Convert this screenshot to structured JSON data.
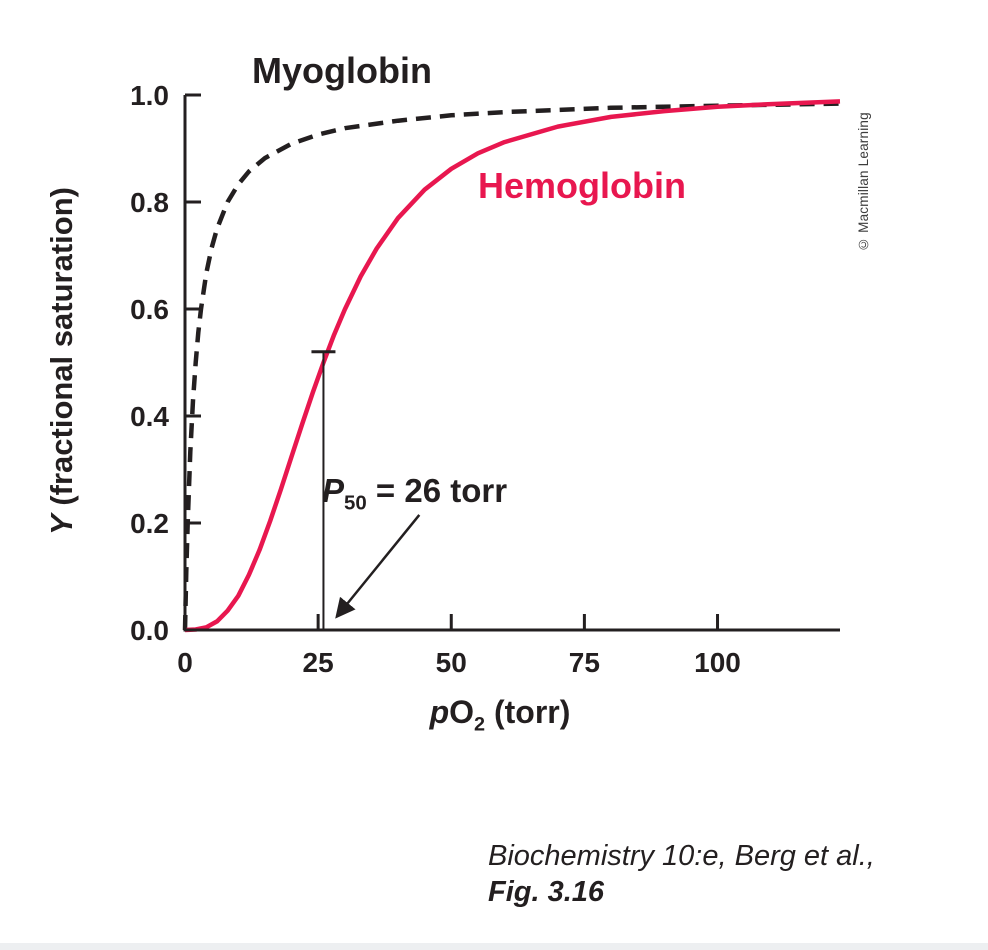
{
  "colors": {
    "axis": "#231f20",
    "text": "#231f20",
    "myoglobin": "#231f20",
    "hemoglobin": "#e8174f"
  },
  "labels": {
    "myoglobin": "Myoglobin",
    "hemoglobin": "Hemoglobin",
    "y_axis": {
      "italic": "Y",
      "rest": " (fractional saturation)"
    },
    "x_axis": {
      "italic": "p",
      "main": "O",
      "sub": "2",
      "rest": " (torr)"
    },
    "p50": {
      "italic": "P",
      "sub": "50",
      "rest": " = 26 torr"
    }
  },
  "credit": "© Macmillan Learning",
  "caption": {
    "line1": "Biochemistry 10:e, Berg et al.,",
    "line2": "Fig. 3.16"
  },
  "chart_data": {
    "type": "line",
    "title": "",
    "xlabel": "pO2 (torr)",
    "ylabel": "Y (fractional saturation)",
    "xlim": [
      0,
      123
    ],
    "ylim": [
      0,
      1.0
    ],
    "grid": false,
    "legend": "inline-labels",
    "x_ticks": [
      {
        "value": 0,
        "label": "0"
      },
      {
        "value": 25,
        "label": "25"
      },
      {
        "value": 50,
        "label": "50"
      },
      {
        "value": 75,
        "label": "75"
      },
      {
        "value": 100,
        "label": "100"
      }
    ],
    "y_ticks": [
      {
        "value": 0.0,
        "label": "0.0"
      },
      {
        "value": 0.2,
        "label": "0.2"
      },
      {
        "value": 0.4,
        "label": "0.4"
      },
      {
        "value": 0.6,
        "label": "0.6"
      },
      {
        "value": 0.8,
        "label": "0.8"
      },
      {
        "value": 1.0,
        "label": "1.0"
      }
    ],
    "series": [
      {
        "name": "Myoglobin",
        "style": "dashed",
        "color_key": "myoglobin",
        "x": [
          0,
          0.25,
          0.5,
          1,
          1.5,
          2,
          2.5,
          3,
          4,
          5,
          6,
          8,
          10,
          12,
          15,
          20,
          25,
          30,
          40,
          50,
          60,
          80,
          100,
          123
        ],
        "y": [
          0,
          0.111,
          0.2,
          0.333,
          0.429,
          0.5,
          0.556,
          0.6,
          0.667,
          0.714,
          0.75,
          0.8,
          0.833,
          0.857,
          0.882,
          0.909,
          0.926,
          0.938,
          0.952,
          0.962,
          0.968,
          0.976,
          0.98,
          0.984
        ]
      },
      {
        "name": "Hemoglobin",
        "style": "solid",
        "color_key": "hemoglobin",
        "x": [
          0,
          2,
          4,
          6,
          8,
          10,
          12,
          14,
          16,
          18,
          20,
          22,
          24,
          26,
          28,
          30,
          33,
          36,
          40,
          45,
          50,
          55,
          60,
          70,
          80,
          90,
          100,
          110,
          123
        ],
        "y": [
          0,
          0.001,
          0.005,
          0.016,
          0.036,
          0.064,
          0.103,
          0.15,
          0.204,
          0.263,
          0.324,
          0.385,
          0.444,
          0.5,
          0.552,
          0.599,
          0.661,
          0.713,
          0.77,
          0.823,
          0.862,
          0.891,
          0.912,
          0.941,
          0.959,
          0.97,
          0.978,
          0.983,
          0.988
        ]
      }
    ],
    "annotation": {
      "label": "P50 = 26 torr",
      "x_torr": 26,
      "y_top": 0.52,
      "arrow_from": [
        44,
        0.215
      ],
      "arrow_to": [
        28.5,
        0.025
      ]
    }
  }
}
